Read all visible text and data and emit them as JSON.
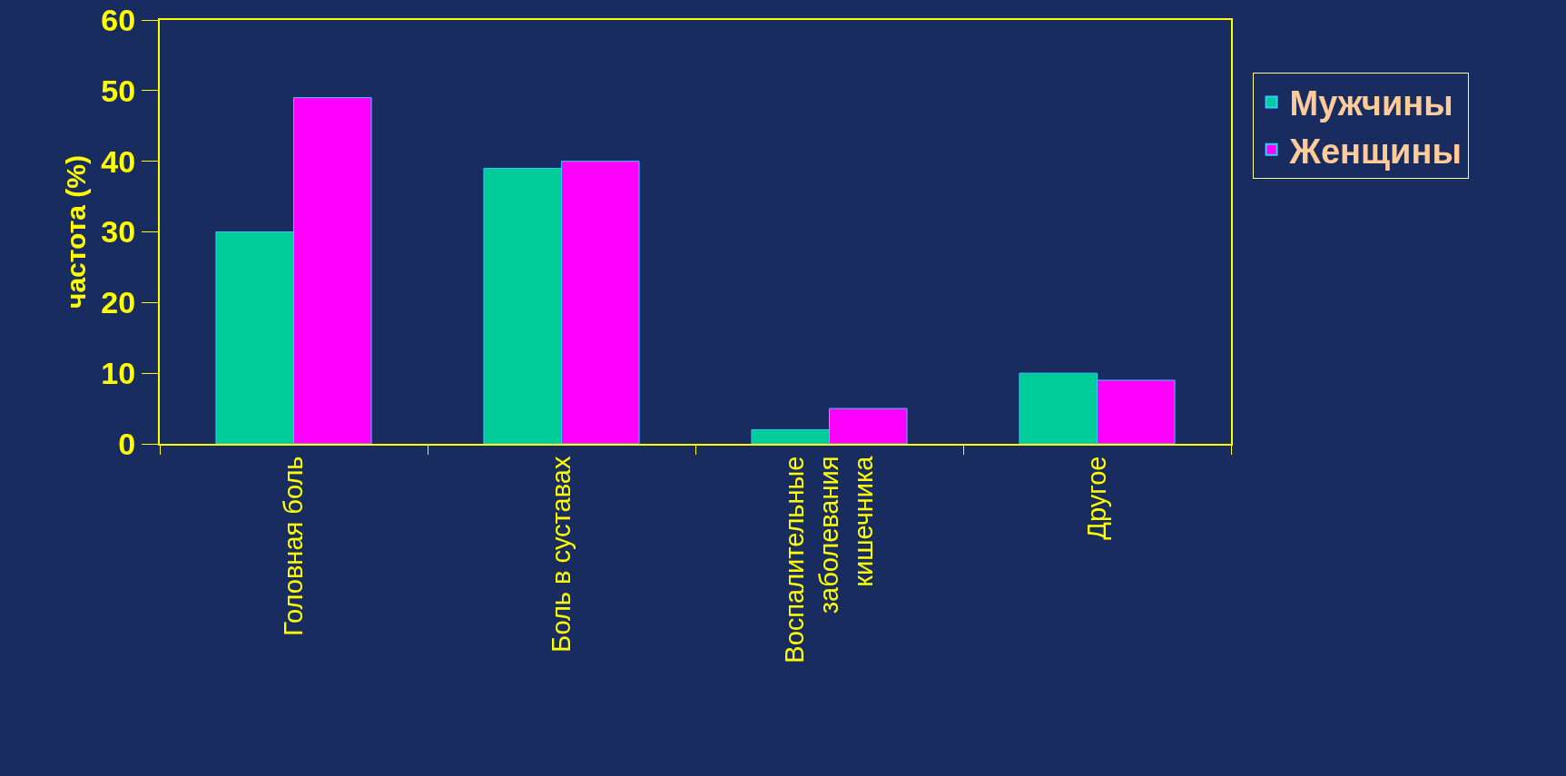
{
  "chart_data": {
    "type": "bar",
    "ylabel": "частота (%)",
    "categories": [
      "Головная боль",
      "Боль в суставах",
      "Воспалительные\nзаболевания\nкишечника",
      "Другое"
    ],
    "series": [
      {
        "name": "Мужчины",
        "color": "#00cc99",
        "values": [
          30,
          39,
          2,
          10
        ]
      },
      {
        "name": "Женщины",
        "color": "#ff00ff",
        "values": [
          49,
          40,
          5,
          9
        ]
      }
    ],
    "ylim": [
      0,
      60
    ],
    "yticks": [
      0,
      10,
      20,
      30,
      40,
      50,
      60
    ],
    "grid": false,
    "legend": "right"
  }
}
